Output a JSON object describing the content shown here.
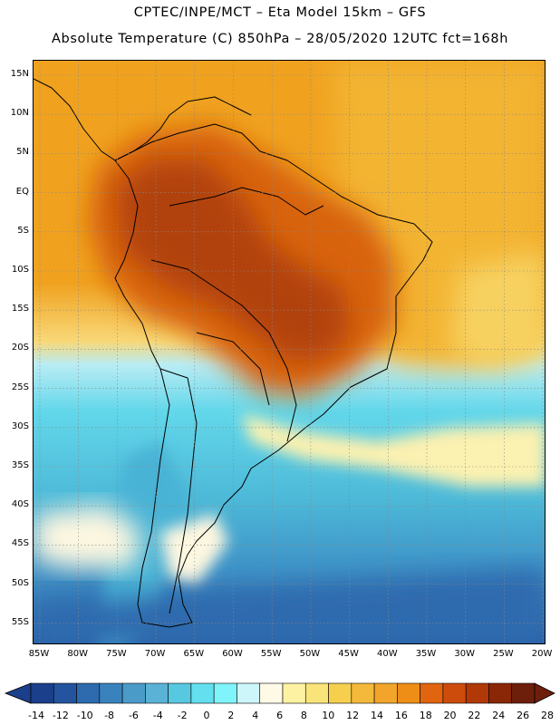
{
  "header": {
    "title_line1": "CPTEC/INPE/MCT –  Eta Model 15km – GFS",
    "title_line2": "Absolute Temperature (C) 850hPa – 28/05/2020 12UTC fct=168h"
  },
  "map": {
    "lat_labels": [
      "15N",
      "10N",
      "5N",
      "EQ",
      "5S",
      "10S",
      "15S",
      "20S",
      "25S",
      "30S",
      "35S",
      "40S",
      "45S",
      "50S",
      "55S"
    ],
    "lon_labels": [
      "85W",
      "80W",
      "75W",
      "70W",
      "65W",
      "60W",
      "55W",
      "50W",
      "45W",
      "40W",
      "35W",
      "30W",
      "25W",
      "20W"
    ]
  },
  "colorbar": {
    "labels": [
      "-14",
      "-12",
      "-10",
      "-8",
      "-6",
      "-4",
      "-2",
      "0",
      "2",
      "4",
      "6",
      "8",
      "10",
      "12",
      "14",
      "16",
      "18",
      "20",
      "22",
      "24",
      "26",
      "28"
    ],
    "colors": [
      "#1b3f8b",
      "#24549e",
      "#2d6aae",
      "#3a82bd",
      "#4b9bc9",
      "#5ab3d6",
      "#56c8e0",
      "#63dfef",
      "#7ff4fa",
      "#cdf6fb",
      "#fefae6",
      "#fcf2a2",
      "#f9e47a",
      "#f6cf4f",
      "#f4b93b",
      "#f2a52a",
      "#ee8e16",
      "#e1640f",
      "#cd4c0c",
      "#b03907",
      "#8a2706",
      "#6e1f0b"
    ],
    "under_color": "#1b3f8b",
    "over_color": "#6e1f0b"
  }
}
